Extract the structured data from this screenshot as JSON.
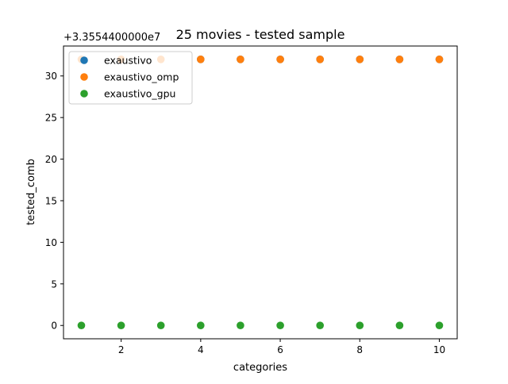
{
  "chart_data": {
    "type": "scatter",
    "title": "25 movies - tested sample",
    "xlabel": "categories",
    "ylabel": "tested_comb",
    "offset_label": "+3.3554400000e7",
    "xlim": [
      0.55,
      10.45
    ],
    "ylim": [
      -1.6,
      33.6
    ],
    "xticks": [
      2,
      4,
      6,
      8,
      10
    ],
    "yticks": [
      0,
      5,
      10,
      15,
      20,
      25,
      30
    ],
    "legend_position": "top-left",
    "series": [
      {
        "name": "exaustivo",
        "color": "#1f77b4",
        "x": [
          4,
          5,
          6,
          7,
          8,
          9,
          10
        ],
        "y": [
          32,
          32,
          32,
          32,
          32,
          32,
          32
        ]
      },
      {
        "name": "exaustivo_omp",
        "color": "#ff7f0e",
        "x": [
          1,
          2,
          3,
          4,
          5,
          6,
          7,
          8,
          9,
          10
        ],
        "y": [
          32,
          32,
          32,
          32,
          32,
          32,
          32,
          32,
          32,
          32
        ]
      },
      {
        "name": "exaustivo_gpu",
        "color": "#2ca02c",
        "x": [
          1,
          2,
          3,
          4,
          5,
          6,
          7,
          8,
          9,
          10
        ],
        "y": [
          0,
          0,
          0,
          0,
          0,
          0,
          0,
          0,
          0,
          0
        ]
      }
    ]
  }
}
